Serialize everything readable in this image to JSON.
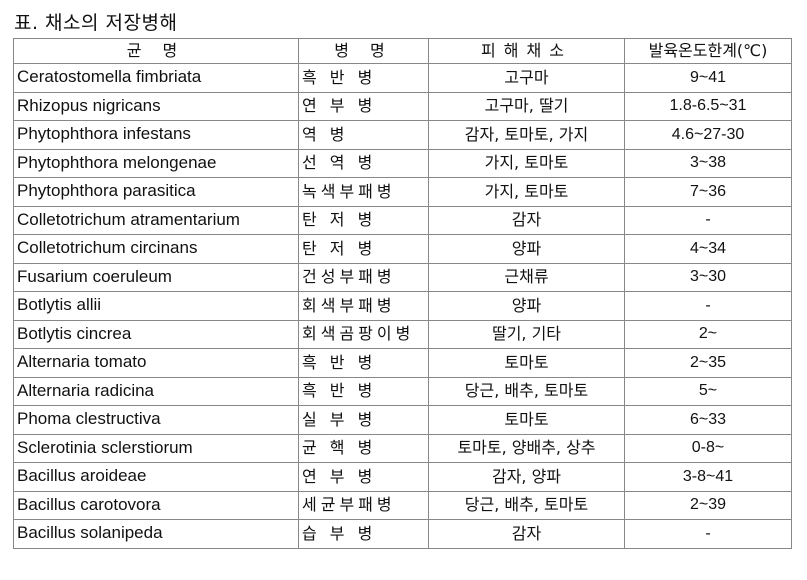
{
  "title": "표. 채소의 저장병해",
  "headers": [
    "균 명",
    "병 명",
    "피해채소",
    "발육온도한계(℃)"
  ],
  "rows": [
    {
      "fungus": "Ceratostomella fimbriata",
      "disease": "흑 반 병",
      "crops": "고구마",
      "temp": "9~41"
    },
    {
      "fungus": "Rhizopus nigricans",
      "disease": "연 부 병",
      "crops": "고구마, 딸기",
      "temp": "1.8-6.5~31"
    },
    {
      "fungus": "Phytophthora infestans",
      "disease": "역   병",
      "crops": "감자, 토마토, 가지",
      "temp": "4.6~27-30"
    },
    {
      "fungus": "Phytophthora melongenae",
      "disease": "선 역 병",
      "crops": "가지, 토마토",
      "temp": "3~38"
    },
    {
      "fungus": "Phytophthora parasitica",
      "disease": "녹색부패병",
      "crops": "가지, 토마토",
      "temp": "7~36"
    },
    {
      "fungus": "Colletotrichum atramentarium",
      "disease": "탄 저 병",
      "crops": "감자",
      "temp": "-"
    },
    {
      "fungus": "Colletotrichum circinans",
      "disease": "탄 저 병",
      "crops": "양파",
      "temp": "4~34"
    },
    {
      "fungus": "Fusarium coeruleum",
      "disease": "건성부패병",
      "crops": "근채류",
      "temp": "3~30"
    },
    {
      "fungus": "Botlytis allii",
      "disease": "회색부패병",
      "crops": "양파",
      "temp": "-"
    },
    {
      "fungus": "Botlytis cincrea",
      "disease": "회색곰팡이병",
      "crops": "딸기, 기타",
      "temp": "2~"
    },
    {
      "fungus": "Alternaria tomato",
      "disease": "흑 반 병",
      "crops": "토마토",
      "temp": "2~35"
    },
    {
      "fungus": "Alternaria radicina",
      "disease": "흑 반 병",
      "crops": "당근, 배추, 토마토",
      "temp": "5~"
    },
    {
      "fungus": "Phoma clestructiva",
      "disease": "실 부 병",
      "crops": "토마토",
      "temp": "6~33"
    },
    {
      "fungus": "Sclerotinia sclerstiorum",
      "disease": "균 핵 병",
      "crops": "토마토, 양배추, 상추",
      "temp": "0-8~"
    },
    {
      "fungus": "Bacillus aroideae",
      "disease": "연 부 병",
      "crops": "감자, 양파",
      "temp": "3-8~41"
    },
    {
      "fungus": "Bacillus carotovora",
      "disease": "세균부패병",
      "crops": "당근, 배추, 토마토",
      "temp": "2~39"
    },
    {
      "fungus": "Bacillus solanipeda",
      "disease": "습 부 병",
      "crops": "감자",
      "temp": "-"
    }
  ]
}
